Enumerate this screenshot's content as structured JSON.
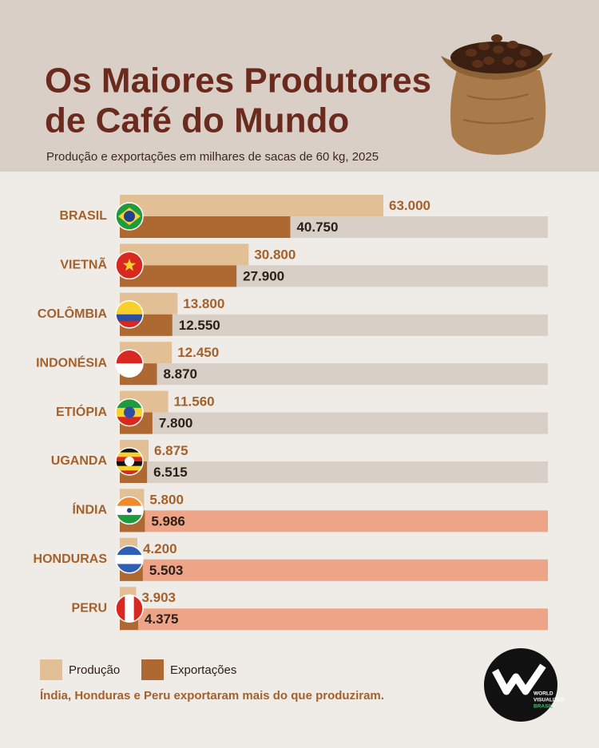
{
  "chart_data": {
    "type": "bar",
    "orientation": "horizontal",
    "title_lines": [
      "Os Maiores Produtores",
      "de Café do Mundo"
    ],
    "subtitle": "Produção e exportações em milhares de sacas de 60 kg, 2025",
    "categories": [
      "BRASIL",
      "VIETNÃ",
      "COLÔMBIA",
      "INDONÉSIA",
      "ETIÓPIA",
      "UGANDA",
      "ÍNDIA",
      "HONDURAS",
      "PERU"
    ],
    "series": [
      {
        "name": "Produção",
        "color": "#e3bf95",
        "values": [
          63000,
          30800,
          13800,
          12450,
          11560,
          6875,
          5800,
          4200,
          3903
        ],
        "value_labels": [
          "63.000",
          "30.800",
          "13.800",
          "12.450",
          "11.560",
          "6.875",
          "5.800",
          "4.200",
          "3.903"
        ]
      },
      {
        "name": "Exportações",
        "color": "#ae6831",
        "values": [
          40750,
          27900,
          12550,
          8870,
          7800,
          6515,
          5986,
          5503,
          4375
        ],
        "value_labels": [
          "40.750",
          "27.900",
          "12.550",
          "8.870",
          "7.800",
          "6.515",
          "5.986",
          "5.503",
          "4.375"
        ]
      }
    ],
    "note": "Índia, Honduras e Peru exportaram mais do que produziram.",
    "logo_lines": [
      "WORLD",
      "VISUALIZED",
      "BRASIL"
    ]
  }
}
